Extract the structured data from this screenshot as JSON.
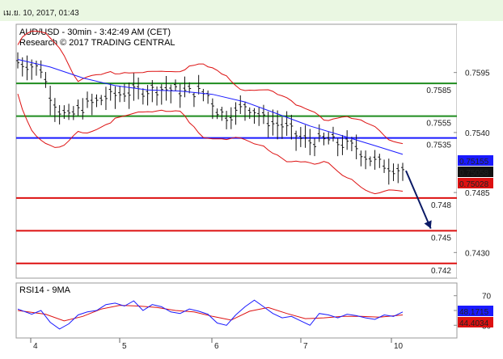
{
  "banner": {
    "date_text": "เม.ย. 10, 2017, 01:43"
  },
  "chart_data": {
    "type": "candlestick",
    "title": "AUD/USD - 30min - 3:42:49 AM (CET)",
    "subtitle": "Research © 2017 TRADING CENTRAL",
    "x_tick_labels": [
      "4",
      "5",
      "6",
      "7",
      "10"
    ],
    "price_axis": {
      "ylim": [
        0.7408,
        0.7637
      ],
      "tick_labels": [
        "0.7595",
        "0.7540",
        "0.7485",
        "0.7430"
      ]
    },
    "levels": [
      {
        "label": "0.7585",
        "value": 0.7585,
        "color": "#1e8c1e",
        "type": "resistance"
      },
      {
        "label": "0.7555",
        "value": 0.7555,
        "color": "#1e8c1e",
        "type": "resistance"
      },
      {
        "label": "0.7535",
        "value": 0.7535,
        "color": "#1a1aff",
        "type": "pivot"
      },
      {
        "label": "0.748",
        "value": 0.748,
        "color": "#dd1111",
        "type": "support"
      },
      {
        "label": "0.745",
        "value": 0.745,
        "color": "#dd1111",
        "type": "support"
      },
      {
        "label": "0.742",
        "value": 0.742,
        "color": "#dd1111",
        "type": "support"
      }
    ],
    "price_badges": [
      {
        "label": "0.75155",
        "value": 0.75155,
        "bg": "#1a1aff",
        "fg": "#ffffff"
      },
      {
        "label": "0.75058",
        "value": 0.75058,
        "bg": "#111111",
        "fg": "#ffffff"
      },
      {
        "label": "0.75028",
        "value": 0.75028,
        "bg": "#dd1111",
        "fg": "#ffffff"
      }
    ],
    "close_path": [
      [
        0,
        0.7604
      ],
      [
        3,
        0.7601
      ],
      [
        5,
        0.7598
      ],
      [
        7,
        0.7574
      ],
      [
        9,
        0.756
      ],
      [
        11,
        0.7553
      ],
      [
        13,
        0.756
      ],
      [
        15,
        0.7565
      ],
      [
        17,
        0.7568
      ],
      [
        19,
        0.7572
      ],
      [
        21,
        0.7574
      ],
      [
        23,
        0.7576
      ],
      [
        25,
        0.7577
      ],
      [
        27,
        0.7578
      ],
      [
        29,
        0.7579
      ],
      [
        31,
        0.758
      ],
      [
        33,
        0.7579
      ],
      [
        35,
        0.7577
      ],
      [
        37,
        0.7577
      ],
      [
        39,
        0.7577
      ],
      [
        41,
        0.7574
      ],
      [
        43,
        0.756
      ],
      [
        45,
        0.7555
      ],
      [
        47,
        0.7558
      ],
      [
        49,
        0.7565
      ],
      [
        51,
        0.756
      ],
      [
        53,
        0.7552
      ],
      [
        55,
        0.7548
      ],
      [
        57,
        0.7546
      ],
      [
        59,
        0.7541
      ],
      [
        61,
        0.7534
      ],
      [
        63,
        0.7531
      ],
      [
        65,
        0.7532
      ],
      [
        67,
        0.7533
      ],
      [
        69,
        0.753
      ],
      [
        71,
        0.7528
      ],
      [
        73,
        0.7526
      ],
      [
        75,
        0.7518
      ],
      [
        77,
        0.7513
      ],
      [
        79,
        0.751
      ],
      [
        81,
        0.7507
      ],
      [
        83,
        0.7506
      ]
    ],
    "ma_path": [
      [
        0,
        0.7607
      ],
      [
        7,
        0.76
      ],
      [
        14,
        0.759
      ],
      [
        21,
        0.7583
      ],
      [
        28,
        0.7579
      ],
      [
        35,
        0.7578
      ],
      [
        42,
        0.7575
      ],
      [
        49,
        0.7568
      ],
      [
        56,
        0.7557
      ],
      [
        63,
        0.7546
      ],
      [
        70,
        0.7537
      ],
      [
        77,
        0.7528
      ],
      [
        83,
        0.752
      ]
    ],
    "forecast_arrow": {
      "from": [
        83,
        0.7505
      ],
      "to": [
        88,
        0.7452
      ]
    },
    "rsi": {
      "label": "RSI14 - 9MA",
      "tick_labels": [
        "70",
        "50",
        "30"
      ],
      "values": [
        48.1715,
        44.4034
      ],
      "value_labels": [
        "48.1715",
        "44.4034"
      ],
      "rsi_path": [
        [
          0,
          52
        ],
        [
          3,
          45
        ],
        [
          5,
          50
        ],
        [
          7,
          34
        ],
        [
          9,
          25
        ],
        [
          11,
          32
        ],
        [
          13,
          44
        ],
        [
          15,
          48
        ],
        [
          17,
          50
        ],
        [
          19,
          58
        ],
        [
          21,
          60
        ],
        [
          23,
          56
        ],
        [
          25,
          63
        ],
        [
          27,
          50
        ],
        [
          29,
          58
        ],
        [
          31,
          55
        ],
        [
          33,
          48
        ],
        [
          35,
          46
        ],
        [
          37,
          52
        ],
        [
          39,
          49
        ],
        [
          41,
          45
        ],
        [
          43,
          33
        ],
        [
          45,
          30
        ],
        [
          47,
          44
        ],
        [
          49,
          55
        ],
        [
          51,
          64
        ],
        [
          53,
          55
        ],
        [
          55,
          46
        ],
        [
          57,
          40
        ],
        [
          59,
          42
        ],
        [
          61,
          36
        ],
        [
          63,
          30
        ],
        [
          65,
          46
        ],
        [
          67,
          44
        ],
        [
          69,
          40
        ],
        [
          71,
          45
        ],
        [
          73,
          43
        ],
        [
          75,
          40
        ],
        [
          77,
          38
        ],
        [
          79,
          44
        ],
        [
          81,
          42
        ],
        [
          83,
          48
        ]
      ],
      "ma_path": [
        [
          0,
          50
        ],
        [
          6,
          45
        ],
        [
          10,
          36
        ],
        [
          14,
          42
        ],
        [
          18,
          52
        ],
        [
          22,
          57
        ],
        [
          26,
          56
        ],
        [
          30,
          54
        ],
        [
          34,
          50
        ],
        [
          38,
          48
        ],
        [
          42,
          42
        ],
        [
          46,
          37
        ],
        [
          50,
          49
        ],
        [
          54,
          54
        ],
        [
          58,
          46
        ],
        [
          62,
          39
        ],
        [
          66,
          40
        ],
        [
          70,
          42
        ],
        [
          74,
          42
        ],
        [
          78,
          41
        ],
        [
          83,
          44
        ]
      ]
    }
  }
}
